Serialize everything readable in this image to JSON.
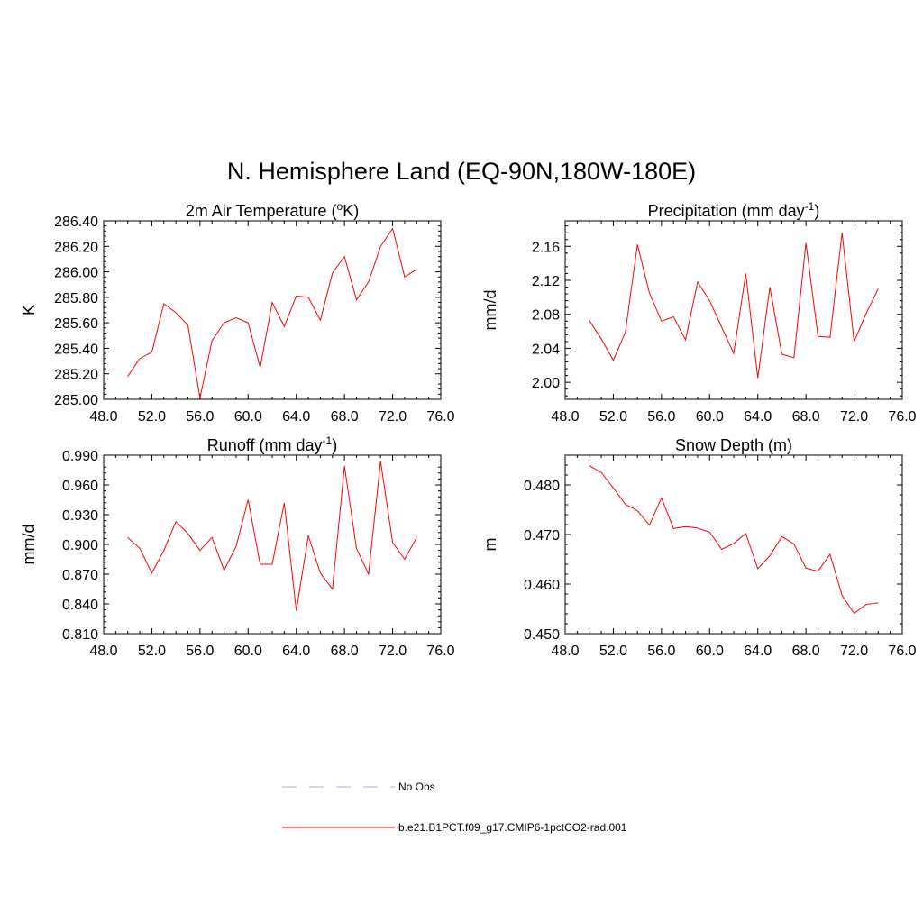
{
  "title": "N. Hemisphere Land (EQ-90N,180W-180E)",
  "chart_data": [
    {
      "type": "line",
      "title": "2m Air Temperature (",
      "title_sup": "o",
      "title_after": "K)",
      "ylabel": "K",
      "xlim": [
        48,
        76
      ],
      "ylim": [
        285.0,
        286.4
      ],
      "xticks": [
        "48.0",
        "52.0",
        "56.0",
        "60.0",
        "64.0",
        "68.0",
        "72.0",
        "76.0"
      ],
      "yticks": [
        "285.00",
        "285.20",
        "285.40",
        "285.60",
        "285.80",
        "286.00",
        "286.20",
        "286.40"
      ],
      "series": [
        {
          "x": [
            50,
            51,
            52,
            53,
            54,
            55,
            56,
            57,
            58,
            59,
            60,
            61,
            62,
            63,
            64,
            65,
            66,
            67,
            68,
            69,
            70,
            71,
            72,
            73,
            74
          ],
          "values": [
            285.18,
            285.32,
            285.37,
            285.75,
            285.68,
            285.58,
            285.01,
            285.46,
            285.6,
            285.64,
            285.6,
            285.25,
            285.76,
            285.57,
            285.81,
            285.8,
            285.62,
            285.99,
            286.12,
            285.78,
            285.92,
            286.2,
            286.34,
            285.96,
            286.02
          ]
        }
      ]
    },
    {
      "type": "line",
      "title": "Precipitation (mm day",
      "title_sup": "-1",
      "title_after": ")",
      "ylabel": "mm/d",
      "xlim": [
        48,
        76
      ],
      "ylim": [
        1.98,
        2.19
      ],
      "xticks": [
        "48.0",
        "52.0",
        "56.0",
        "60.0",
        "64.0",
        "68.0",
        "72.0",
        "76.0"
      ],
      "yticks": [
        "2.00",
        "2.04",
        "2.08",
        "2.12",
        "2.16"
      ],
      "series": [
        {
          "x": [
            50,
            51,
            52,
            53,
            54,
            55,
            56,
            57,
            58,
            59,
            60,
            61,
            62,
            63,
            64,
            65,
            66,
            67,
            68,
            69,
            70,
            71,
            72,
            73,
            74
          ],
          "values": [
            2.073,
            2.051,
            2.026,
            2.059,
            2.162,
            2.105,
            2.072,
            2.077,
            2.05,
            2.118,
            2.096,
            2.065,
            2.034,
            2.128,
            2.005,
            2.112,
            2.033,
            2.029,
            2.164,
            2.054,
            2.053,
            2.176,
            2.048,
            2.081,
            2.11
          ]
        }
      ]
    },
    {
      "type": "line",
      "title": "Runoff (mm day",
      "title_sup": "-1",
      "title_after": ")",
      "ylabel": "mm/d",
      "xlim": [
        48,
        76
      ],
      "ylim": [
        0.81,
        0.99
      ],
      "xticks": [
        "48.0",
        "52.0",
        "56.0",
        "60.0",
        "64.0",
        "68.0",
        "72.0",
        "76.0"
      ],
      "yticks": [
        "0.810",
        "0.840",
        "0.870",
        "0.900",
        "0.930",
        "0.960",
        "0.990"
      ],
      "series": [
        {
          "x": [
            50,
            51,
            52,
            53,
            54,
            55,
            56,
            57,
            58,
            59,
            60,
            61,
            62,
            63,
            64,
            65,
            66,
            67,
            68,
            69,
            70,
            71,
            72,
            73,
            74
          ],
          "values": [
            0.907,
            0.896,
            0.871,
            0.894,
            0.923,
            0.911,
            0.894,
            0.907,
            0.874,
            0.898,
            0.945,
            0.88,
            0.88,
            0.942,
            0.833,
            0.909,
            0.871,
            0.855,
            0.979,
            0.896,
            0.87,
            0.984,
            0.902,
            0.885,
            0.907
          ]
        }
      ]
    },
    {
      "type": "line",
      "title": "Snow Depth (m)",
      "title_sup": "",
      "title_after": "",
      "ylabel": "m",
      "xlim": [
        48,
        76
      ],
      "ylim": [
        0.45,
        0.486
      ],
      "xticks": [
        "48.0",
        "52.0",
        "56.0",
        "60.0",
        "64.0",
        "68.0",
        "72.0",
        "76.0"
      ],
      "yticks": [
        "0.450",
        "0.460",
        "0.470",
        "0.480"
      ],
      "series": [
        {
          "x": [
            50,
            51,
            52,
            53,
            54,
            55,
            56,
            57,
            58,
            59,
            60,
            61,
            62,
            63,
            64,
            65,
            66,
            67,
            68,
            69,
            70,
            71,
            72,
            73,
            74
          ],
          "values": [
            0.4839,
            0.4825,
            0.4794,
            0.4761,
            0.4748,
            0.4719,
            0.4774,
            0.4712,
            0.4716,
            0.4713,
            0.4705,
            0.467,
            0.4682,
            0.4702,
            0.4631,
            0.4657,
            0.4696,
            0.4681,
            0.4632,
            0.4626,
            0.466,
            0.4577,
            0.4541,
            0.4559,
            0.4562
          ]
        }
      ]
    }
  ],
  "legend": [
    {
      "label": "No Obs",
      "color": "#aaaaee",
      "style": "dashed"
    },
    {
      "label": "b.e21.B1PCT.f09_g17.CMIP6-1pctCO2-rad.001",
      "color": "#ff0000",
      "style": "solid"
    }
  ],
  "colors": {
    "line": "#ff0000"
  }
}
